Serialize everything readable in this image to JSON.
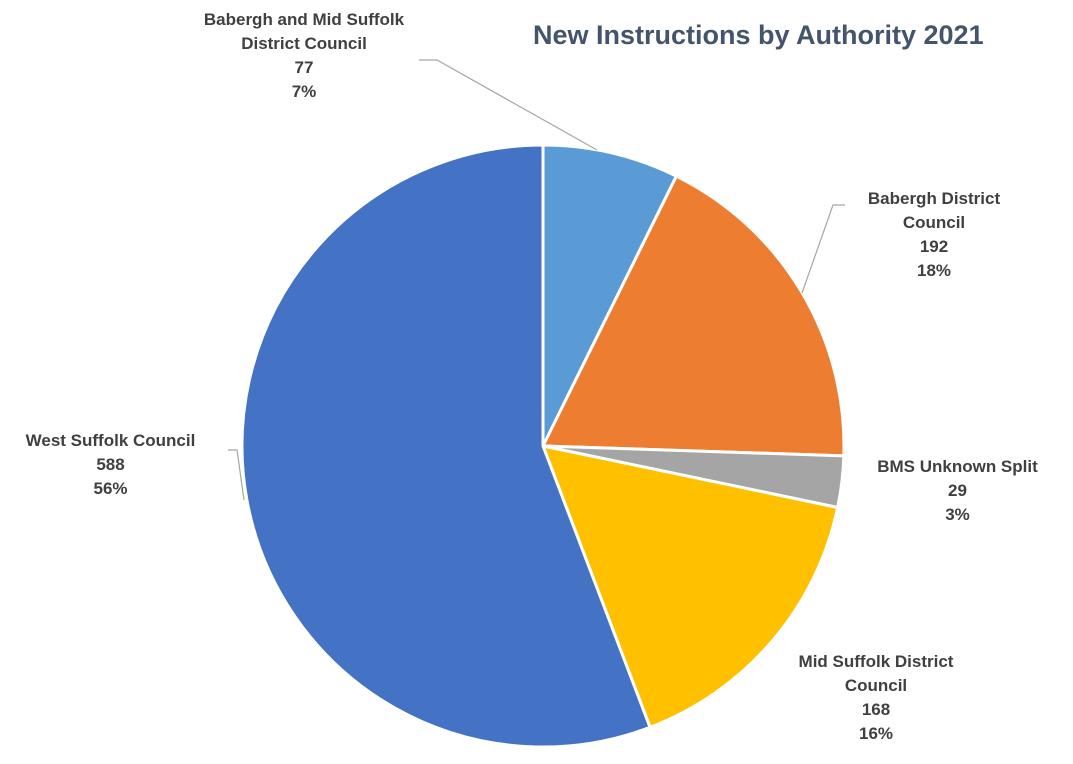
{
  "chart_data": {
    "type": "pie",
    "title": "New Instructions by Authority 2021",
    "slices": [
      {
        "name": "Babergh and Mid Suffolk District Council",
        "value": 77,
        "percent": "7%",
        "color": "#5b9bd5"
      },
      {
        "name": "Babergh District Council",
        "value": 192,
        "percent": "18%",
        "color": "#ed7d31"
      },
      {
        "name": "BMS Unknown Split",
        "value": 29,
        "percent": "3%",
        "color": "#a5a5a5"
      },
      {
        "name": "Mid Suffolk District Council",
        "value": 168,
        "percent": "16%",
        "color": "#ffc000"
      },
      {
        "name": "West Suffolk Council",
        "value": 588,
        "percent": "56%",
        "color": "#4472c4"
      }
    ],
    "start_angle": "12 o'clock",
    "direction": "clockwise",
    "legend": "none",
    "data_labels": "name, value, percentage"
  }
}
